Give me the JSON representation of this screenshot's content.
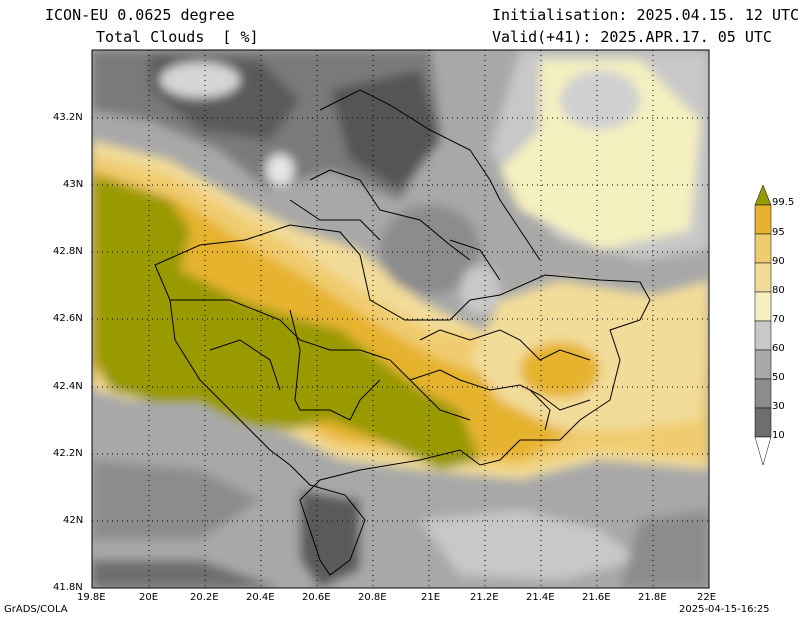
{
  "header": {
    "model": "ICON-EU 0.0625 degree",
    "field": "Total Clouds  [ %]",
    "init": "Initialisation: 2025.04.15. 12 UTC",
    "valid": "Valid(+41): 2025.APR.17. 05 UTC"
  },
  "footer": {
    "left": "GrADS/COLA",
    "right": "2025-04-15-16:25"
  },
  "axes": {
    "x_ticks": [
      "19.8E",
      "20E",
      "20.2E",
      "20.4E",
      "20.6E",
      "20.8E",
      "21E",
      "21.2E",
      "21.4E",
      "21.6E",
      "21.8E",
      "22E"
    ],
    "y_ticks": [
      "43.2N",
      "43N",
      "42.8N",
      "42.6N",
      "42.4N",
      "42.2N",
      "42N",
      "41.8N"
    ]
  },
  "colorbar": {
    "labels": [
      "99.5",
      "95",
      "90",
      "80",
      "70",
      "60",
      "50",
      "30",
      "10"
    ],
    "colors": [
      "#999900",
      "#e6b32e",
      "#f0cc70",
      "#f2dc9a",
      "#f5f0c0",
      "#c8c8c8",
      "#a8a8a8",
      "#8c8c8c",
      "#6e6e6e",
      "#555555",
      "#ffffff"
    ]
  }
}
